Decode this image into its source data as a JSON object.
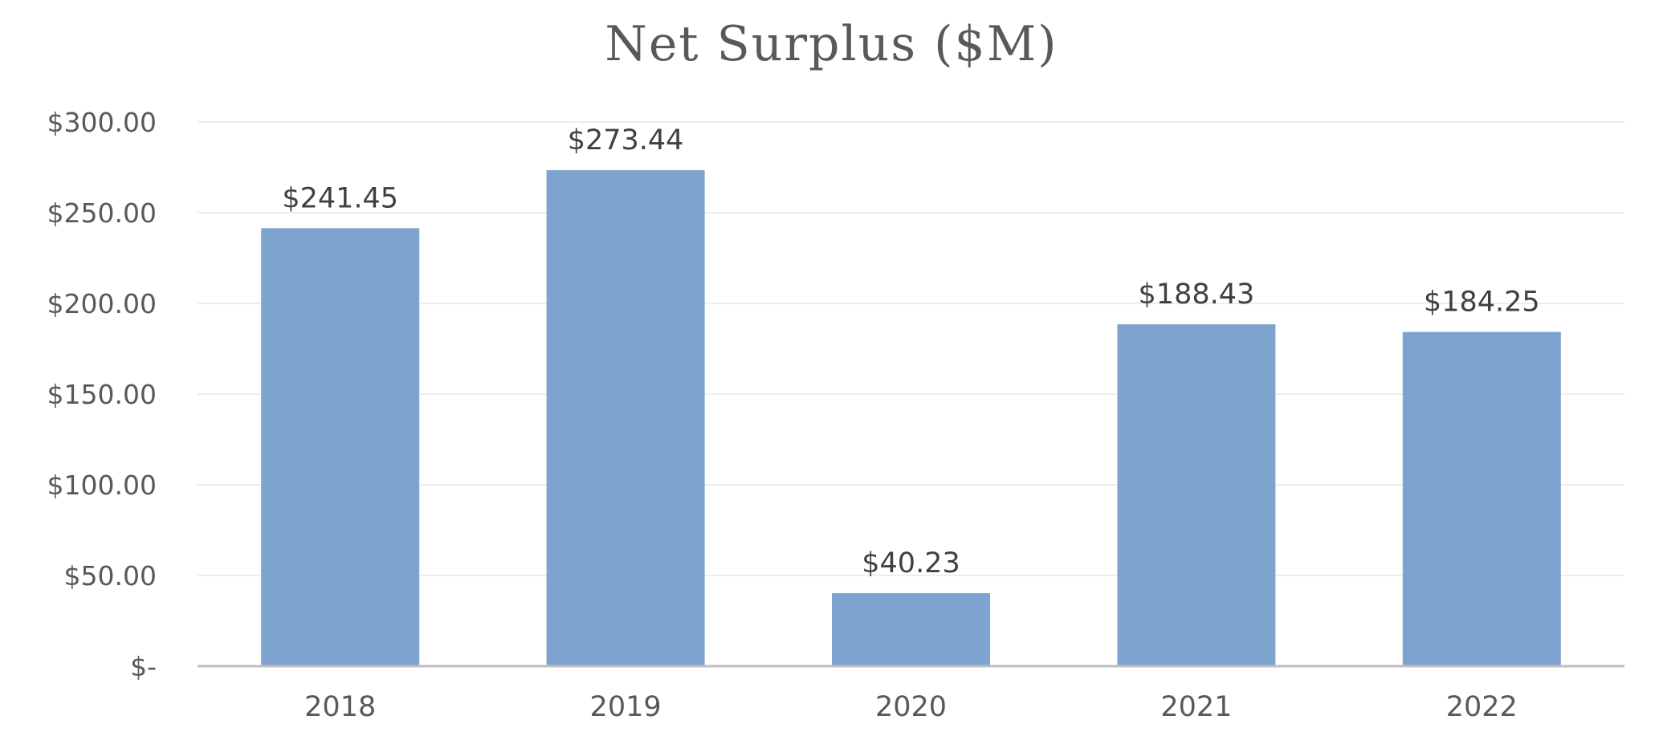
{
  "chart_data": {
    "type": "bar",
    "title": "Net Surplus ($M)",
    "xlabel": "",
    "ylabel": "",
    "categories": [
      "2018",
      "2019",
      "2020",
      "2021",
      "2022"
    ],
    "values": [
      241.45,
      273.44,
      40.23,
      188.43,
      184.25
    ],
    "data_labels": [
      "$241.45",
      "$273.44",
      "$40.23",
      "$188.43",
      "$184.25"
    ],
    "ylim": [
      0,
      300
    ],
    "yticks": [
      0,
      50,
      100,
      150,
      200,
      250,
      300
    ],
    "ytick_labels": [
      "$-",
      "$50.00",
      "$100.00",
      "$150.00",
      "$200.00",
      "$250.00",
      "$300.00"
    ],
    "grid": true,
    "legend": "none",
    "colors": {
      "bar": "#7fa3cf",
      "axis": "#bfbfbf",
      "grid": "#ededed",
      "text": "#595959"
    }
  }
}
